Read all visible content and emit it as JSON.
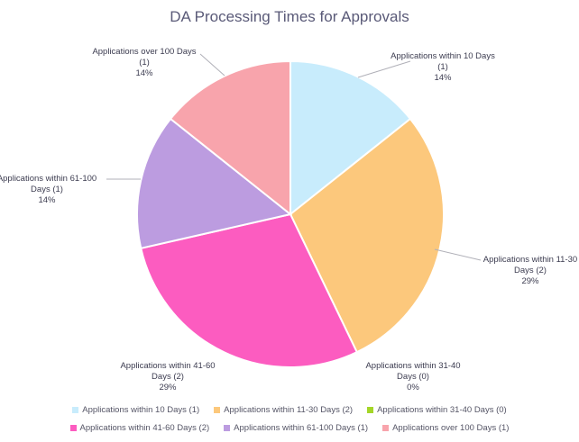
{
  "chart_data": {
    "type": "pie",
    "title": "DA Processing Times for Approvals",
    "slices": [
      {
        "label": "Applications within 10 Days",
        "count_text": "(1)",
        "value": 1,
        "percent": "14%",
        "legend": "Applications within 10 Days (1)",
        "color": "#c8ecfc"
      },
      {
        "label": "Applications within 11-30 Days",
        "count_text": "(2)",
        "value": 2,
        "percent": "29%",
        "legend": "Applications within 11-30 Days (2)",
        "color": "#fcc87c"
      },
      {
        "label": "Applications within 31-40 Days",
        "count_text": "(0)",
        "value": 0,
        "percent": "0%",
        "legend": "Applications within 31-40 Days (0)",
        "color": "#a4d628"
      },
      {
        "label": "Applications within 41-60 Days",
        "count_text": "(2)",
        "value": 2,
        "percent": "29%",
        "legend": "Applications within 41-60 Days (2)",
        "color": "#fc5cc0"
      },
      {
        "label": "Applications within 61-100 Days",
        "count_text": "(1)",
        "value": 1,
        "percent": "14%",
        "legend": "Applications within 61-100 Days (1)",
        "color": "#bc9ce0"
      },
      {
        "label": "Applications over 100 Days",
        "count_text": "(1)",
        "value": 1,
        "percent": "14%",
        "legend": "Applications over 100 Days (1)",
        "color": "#f8a4ac"
      }
    ],
    "label_lines": [
      [
        "Applications within 10 Days",
        "(1)",
        "14%"
      ],
      [
        "Applications within 11-30",
        "Days (2)",
        "29%"
      ],
      [
        "Applications within 31-40",
        "Days (0)",
        "0%"
      ],
      [
        "Applications within 41-60",
        "Days (2)",
        "29%"
      ],
      [
        "Applications within 61-100",
        "Days (1)",
        "14%"
      ],
      [
        "Applications over 100 Days",
        "(1)",
        "14%"
      ]
    ],
    "legend_placement": "bottom"
  }
}
